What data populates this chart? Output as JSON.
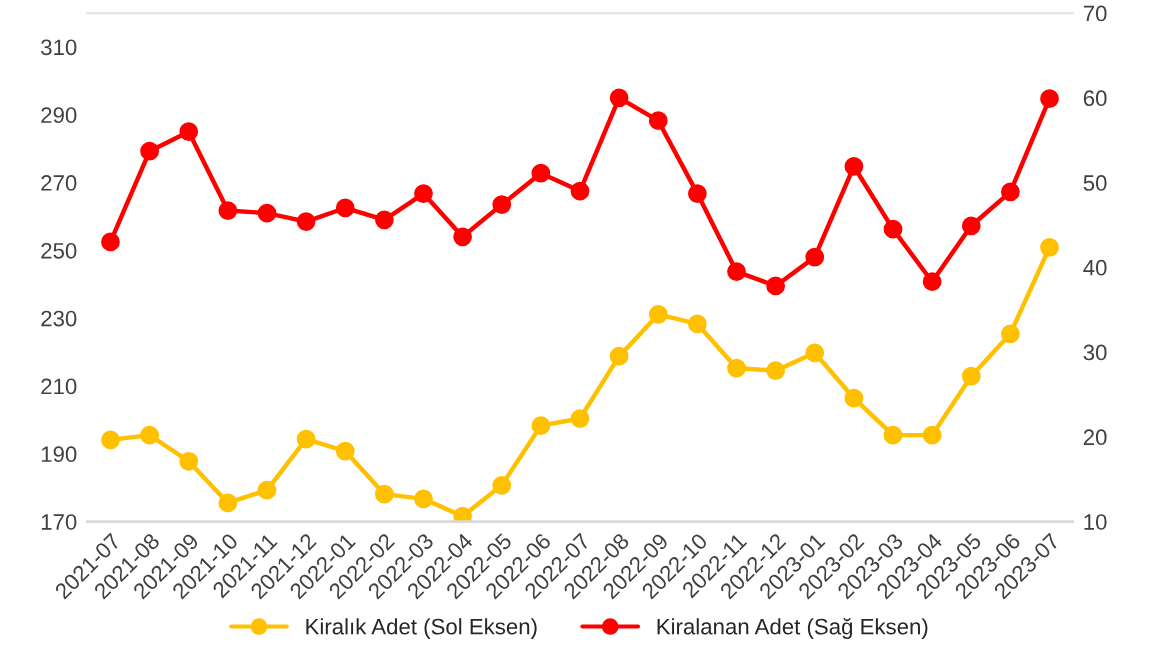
{
  "chart_data": {
    "type": "line",
    "categories": [
      "2021-07",
      "2021-08",
      "2021-09",
      "2021-10",
      "2021-11",
      "2021-12",
      "2022-01",
      "2022-02",
      "2022-03",
      "2022-04",
      "2022-05",
      "2022-06",
      "2022-07",
      "2022-08",
      "2022-09",
      "2022-10",
      "2022-11",
      "2022-12",
      "2023-01",
      "2023-02",
      "2023-03",
      "2023-04",
      "2023-05",
      "2023-06",
      "2023-07"
    ],
    "series": [
      {
        "name": "Kiralık Adet (Sol Eksen)",
        "color": "#ffc000",
        "values": [
          194.1,
          195.5,
          187.8,
          175.5,
          179.3,
          194.3,
          190.8,
          178.1,
          176.7,
          171.6,
          180.7,
          198.3,
          200.4,
          218.8,
          231.1,
          228.3,
          215.3,
          214.5,
          219.8,
          206.4,
          195.5,
          195.5,
          212.9,
          225.4,
          250.9
        ]
      },
      {
        "name": "Kiralanan Adet (Sağ Eksen)",
        "color": "#ff0000",
        "axis": "y2",
        "values": [
          43.0,
          53.7,
          56.0,
          46.7,
          46.4,
          45.4,
          47.0,
          45.6,
          48.7,
          43.6,
          47.4,
          51.1,
          49.0,
          60.0,
          57.3,
          48.7,
          39.5,
          37.8,
          41.2,
          51.9,
          44.5,
          38.3,
          44.9,
          48.9,
          59.9
        ]
      }
    ],
    "ylim": [
      170,
      320
    ],
    "yticks": [
      170,
      190,
      210,
      230,
      250,
      270,
      290,
      310
    ],
    "y2lim": [
      10,
      70
    ],
    "y2ticks": [
      10,
      20,
      30,
      40,
      50,
      60,
      70
    ],
    "marker": "circle",
    "line_style": "solid",
    "grid": false,
    "legend": "bottom"
  }
}
